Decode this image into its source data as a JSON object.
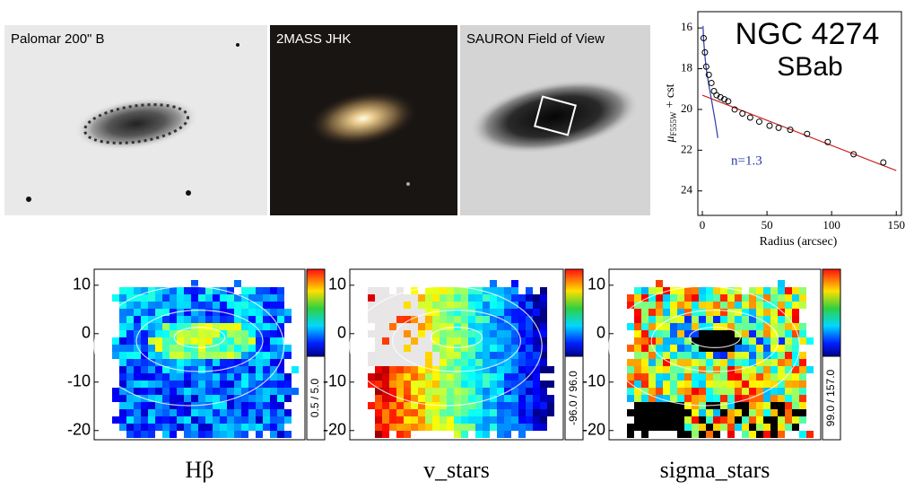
{
  "images": [
    {
      "label": "Palomar 200\" B"
    },
    {
      "label": "2MASS JHK"
    },
    {
      "label": "SAURON Field of View"
    }
  ],
  "chart_data": {
    "type": "scatter",
    "title": "NGC 4274",
    "subtitle": "SBab",
    "x_label": "Radius (arcsec)",
    "y_label": {
      "symbol": "μ",
      "subscript": "F555W",
      "rest": "+ cst"
    },
    "annotation": "n=1.3",
    "x": [
      1,
      2,
      3,
      5,
      7,
      9,
      11,
      14,
      17,
      20,
      25,
      31,
      37,
      44,
      52,
      59,
      68,
      81,
      97,
      117,
      140
    ],
    "values": [
      16.5,
      17.2,
      17.9,
      18.3,
      18.7,
      19.1,
      19.3,
      19.4,
      19.5,
      19.6,
      20.0,
      20.2,
      20.4,
      20.6,
      20.8,
      20.9,
      21.0,
      21.2,
      21.6,
      22.2,
      22.6
    ],
    "color": "#000000",
    "fits": [
      {
        "color": "#cc2222",
        "x": [
          0,
          150
        ],
        "values": [
          19.3,
          23.0
        ]
      },
      {
        "color": "#2a3aa8",
        "x": [
          0.5,
          1,
          2,
          3,
          5,
          7,
          10,
          12
        ],
        "values": [
          15.9,
          16.6,
          17.4,
          18.0,
          18.8,
          19.5,
          20.6,
          21.4
        ]
      }
    ],
    "xlim": [
      -3.5,
      154
    ],
    "ylim": [
      25.2,
      15.2
    ],
    "xticks": [
      0,
      50,
      100,
      150
    ],
    "yticks": [
      16,
      18,
      20,
      22,
      24
    ]
  },
  "maps": {
    "ylim": [
      -21.9,
      13.3
    ],
    "yticks": [
      10,
      0,
      -10,
      -20
    ],
    "panels": [
      {
        "label": "Hβ",
        "range": "0.5 / 5.0"
      },
      {
        "label": "v_stars",
        "range": "-96.0 / 96.0"
      },
      {
        "label": "sigma_stars",
        "range": "99.0 / 157.0"
      }
    ]
  }
}
